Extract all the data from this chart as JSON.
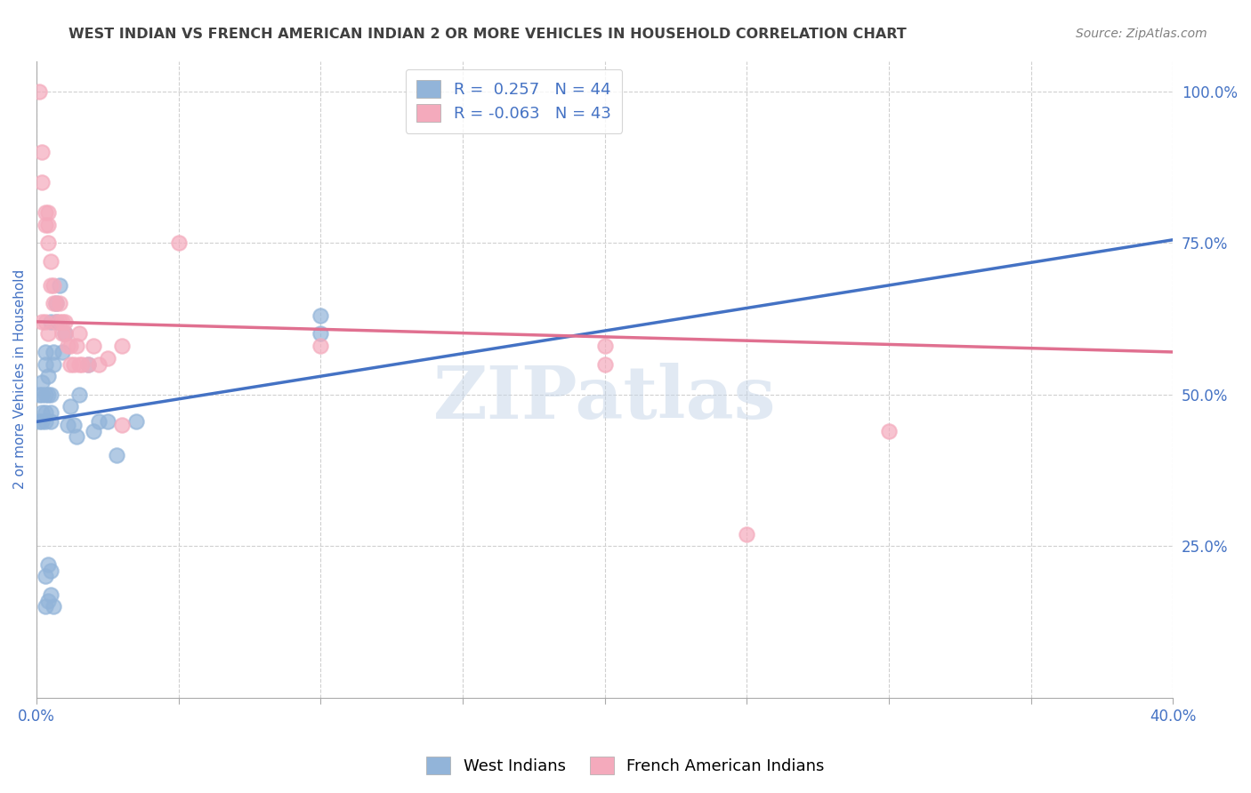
{
  "title": "WEST INDIAN VS FRENCH AMERICAN INDIAN 2 OR MORE VEHICLES IN HOUSEHOLD CORRELATION CHART",
  "source": "Source: ZipAtlas.com",
  "ylabel": "2 or more Vehicles in Household",
  "xmin": 0.0,
  "xmax": 0.4,
  "ymin": 0.0,
  "ymax": 1.05,
  "x_ticks": [
    0.0,
    0.05,
    0.1,
    0.15,
    0.2,
    0.25,
    0.3,
    0.35,
    0.4
  ],
  "x_tick_labels": [
    "0.0%",
    "",
    "",
    "",
    "",
    "",
    "",
    "",
    "40.0%"
  ],
  "y_ticks_right": [
    0.25,
    0.5,
    0.75,
    1.0
  ],
  "y_tick_labels_right": [
    "25.0%",
    "50.0%",
    "75.0%",
    "100.0%"
  ],
  "R_blue": 0.257,
  "N_blue": 44,
  "R_pink": -0.063,
  "N_pink": 43,
  "legend_label_blue": "West Indians",
  "legend_label_pink": "French American Indians",
  "blue_color": "#92B4D9",
  "pink_color": "#F4AABC",
  "blue_line_color": "#4472C4",
  "pink_line_color": "#E07090",
  "title_color": "#404040",
  "source_color": "#808080",
  "axis_label_color": "#4472C4",
  "blue_scatter": [
    [
      0.001,
      0.455
    ],
    [
      0.001,
      0.5
    ],
    [
      0.002,
      0.455
    ],
    [
      0.002,
      0.47
    ],
    [
      0.002,
      0.5
    ],
    [
      0.002,
      0.52
    ],
    [
      0.003,
      0.455
    ],
    [
      0.003,
      0.47
    ],
    [
      0.003,
      0.5
    ],
    [
      0.003,
      0.55
    ],
    [
      0.003,
      0.57
    ],
    [
      0.004,
      0.5
    ],
    [
      0.004,
      0.53
    ],
    [
      0.005,
      0.455
    ],
    [
      0.005,
      0.47
    ],
    [
      0.005,
      0.5
    ],
    [
      0.005,
      0.62
    ],
    [
      0.006,
      0.55
    ],
    [
      0.006,
      0.57
    ],
    [
      0.007,
      0.62
    ],
    [
      0.007,
      0.65
    ],
    [
      0.008,
      0.68
    ],
    [
      0.009,
      0.57
    ],
    [
      0.01,
      0.6
    ],
    [
      0.011,
      0.45
    ],
    [
      0.012,
      0.48
    ],
    [
      0.013,
      0.45
    ],
    [
      0.014,
      0.43
    ],
    [
      0.015,
      0.5
    ],
    [
      0.018,
      0.55
    ],
    [
      0.02,
      0.44
    ],
    [
      0.022,
      0.455
    ],
    [
      0.025,
      0.455
    ],
    [
      0.028,
      0.4
    ],
    [
      0.035,
      0.455
    ],
    [
      0.003,
      0.2
    ],
    [
      0.004,
      0.22
    ],
    [
      0.005,
      0.21
    ],
    [
      0.003,
      0.15
    ],
    [
      0.004,
      0.16
    ],
    [
      0.005,
      0.17
    ],
    [
      0.006,
      0.15
    ],
    [
      0.1,
      0.6
    ],
    [
      0.1,
      0.63
    ]
  ],
  "pink_scatter": [
    [
      0.001,
      1.0
    ],
    [
      0.002,
      0.9
    ],
    [
      0.002,
      0.85
    ],
    [
      0.003,
      0.8
    ],
    [
      0.003,
      0.78
    ],
    [
      0.004,
      0.78
    ],
    [
      0.004,
      0.8
    ],
    [
      0.004,
      0.75
    ],
    [
      0.005,
      0.72
    ],
    [
      0.005,
      0.68
    ],
    [
      0.006,
      0.65
    ],
    [
      0.006,
      0.68
    ],
    [
      0.007,
      0.65
    ],
    [
      0.007,
      0.62
    ],
    [
      0.008,
      0.62
    ],
    [
      0.008,
      0.65
    ],
    [
      0.009,
      0.62
    ],
    [
      0.009,
      0.6
    ],
    [
      0.01,
      0.6
    ],
    [
      0.01,
      0.62
    ],
    [
      0.011,
      0.58
    ],
    [
      0.012,
      0.55
    ],
    [
      0.012,
      0.58
    ],
    [
      0.013,
      0.55
    ],
    [
      0.014,
      0.58
    ],
    [
      0.015,
      0.55
    ],
    [
      0.015,
      0.6
    ],
    [
      0.016,
      0.55
    ],
    [
      0.018,
      0.55
    ],
    [
      0.02,
      0.58
    ],
    [
      0.022,
      0.55
    ],
    [
      0.025,
      0.56
    ],
    [
      0.03,
      0.58
    ],
    [
      0.03,
      0.45
    ],
    [
      0.05,
      0.75
    ],
    [
      0.1,
      0.58
    ],
    [
      0.2,
      0.58
    ],
    [
      0.2,
      0.55
    ],
    [
      0.25,
      0.27
    ],
    [
      0.3,
      0.44
    ],
    [
      0.002,
      0.62
    ],
    [
      0.003,
      0.62
    ],
    [
      0.004,
      0.6
    ]
  ],
  "blue_trendline": [
    [
      0.0,
      0.455
    ],
    [
      0.4,
      0.755
    ]
  ],
  "pink_trendline": [
    [
      0.0,
      0.62
    ],
    [
      0.4,
      0.57
    ]
  ],
  "watermark": "ZIPatlas",
  "watermark_color": "#C5D5E8",
  "grid_color": "#D0D0D0"
}
